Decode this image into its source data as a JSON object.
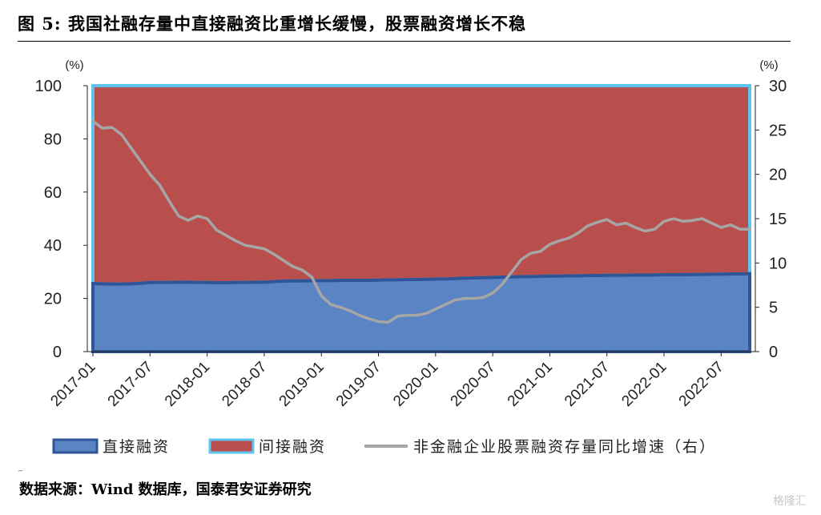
{
  "title": "图 5:  我国社融存量中直接融资比重增长缓慢，股票融资增长不稳",
  "source": "数据来源：Wind 数据库，国泰君安证券研究",
  "watermark": "格隆汇",
  "colors": {
    "direct_fill": "#5b84c4",
    "direct_edge": "#2e5597",
    "indirect_fill": "#b84f4d",
    "indirect_edge": "#5ec4ee",
    "growth_line": "#a6a6a6"
  },
  "chart_data": {
    "type": "area",
    "x": [
      "2017-01",
      "2017-02",
      "2017-03",
      "2017-04",
      "2017-05",
      "2017-06",
      "2017-07",
      "2017-08",
      "2017-09",
      "2017-10",
      "2017-11",
      "2017-12",
      "2018-01",
      "2018-02",
      "2018-03",
      "2018-04",
      "2018-05",
      "2018-06",
      "2018-07",
      "2018-08",
      "2018-09",
      "2018-10",
      "2018-11",
      "2018-12",
      "2019-01",
      "2019-02",
      "2019-03",
      "2019-04",
      "2019-05",
      "2019-06",
      "2019-07",
      "2019-08",
      "2019-09",
      "2019-10",
      "2019-11",
      "2019-12",
      "2020-01",
      "2020-02",
      "2020-03",
      "2020-04",
      "2020-05",
      "2020-06",
      "2020-07",
      "2020-08",
      "2020-09",
      "2020-10",
      "2020-11",
      "2020-12",
      "2021-01",
      "2021-02",
      "2021-03",
      "2021-04",
      "2021-05",
      "2021-06",
      "2021-07",
      "2021-08",
      "2021-09",
      "2021-10",
      "2021-11",
      "2021-12",
      "2022-01",
      "2022-02",
      "2022-03",
      "2022-04",
      "2022-05",
      "2022-06",
      "2022-07",
      "2022-08",
      "2022-09",
      "2022-10"
    ],
    "x_tick_labels": [
      "2017-01",
      "2017-07",
      "2018-01",
      "2018-07",
      "2019-01",
      "2019-07",
      "2020-01",
      "2020-07",
      "2021-01",
      "2021-07",
      "2022-01",
      "2022-07"
    ],
    "y_left": {
      "unit": "(%)",
      "range": [
        0,
        100
      ],
      "ticks": [
        "0",
        "20",
        "40",
        "60",
        "80",
        "100"
      ]
    },
    "y_right": {
      "unit": "(%)",
      "range": [
        0,
        30
      ],
      "ticks": [
        "0",
        "5",
        "10",
        "15",
        "20",
        "25",
        "30"
      ]
    },
    "series": [
      {
        "name": "直接融资",
        "kind": "area",
        "axis": "left",
        "values": [
          25.6,
          25.5,
          25.4,
          25.4,
          25.5,
          25.7,
          26.0,
          26.0,
          26.0,
          26.1,
          26.1,
          26.0,
          26.0,
          25.9,
          25.9,
          26.0,
          26.0,
          26.1,
          26.1,
          26.3,
          26.5,
          26.6,
          26.6,
          26.7,
          26.7,
          26.7,
          26.8,
          26.8,
          26.8,
          26.8,
          26.9,
          27.0,
          27.0,
          27.1,
          27.1,
          27.2,
          27.3,
          27.3,
          27.5,
          27.6,
          27.7,
          27.8,
          27.9,
          28.0,
          28.1,
          28.2,
          28.2,
          28.3,
          28.4,
          28.4,
          28.5,
          28.5,
          28.6,
          28.6,
          28.7,
          28.7,
          28.7,
          28.8,
          28.8,
          28.8,
          28.9,
          28.9,
          28.9,
          29.0,
          29.0,
          29.1,
          29.1,
          29.2,
          29.2,
          29.3
        ]
      },
      {
        "name": "间接融资",
        "kind": "area",
        "axis": "left",
        "values": [
          74.4,
          74.5,
          74.6,
          74.6,
          74.5,
          74.3,
          74.0,
          74.0,
          74.0,
          73.9,
          73.9,
          74.0,
          74.0,
          74.1,
          74.1,
          74.0,
          74.0,
          73.9,
          73.9,
          73.7,
          73.5,
          73.4,
          73.4,
          73.3,
          73.3,
          73.3,
          73.2,
          73.2,
          73.2,
          73.2,
          73.1,
          73.0,
          73.0,
          72.9,
          72.9,
          72.8,
          72.7,
          72.7,
          72.5,
          72.4,
          72.3,
          72.2,
          72.1,
          72.0,
          71.9,
          71.8,
          71.8,
          71.7,
          71.6,
          71.6,
          71.5,
          71.5,
          71.4,
          71.4,
          71.3,
          71.3,
          71.3,
          71.2,
          71.2,
          71.2,
          71.1,
          71.1,
          71.1,
          71.0,
          71.0,
          70.9,
          70.9,
          70.8,
          70.8,
          70.7
        ]
      },
      {
        "name": "非金融企业股票融资存量同比增速（右）",
        "kind": "line",
        "axis": "right",
        "values": [
          26.0,
          25.2,
          25.3,
          24.5,
          23.0,
          21.5,
          20.0,
          18.8,
          17.0,
          15.3,
          14.8,
          15.3,
          15.0,
          13.7,
          13.1,
          12.5,
          12.0,
          11.8,
          11.6,
          11.0,
          10.3,
          9.6,
          9.2,
          8.4,
          6.3,
          5.3,
          5.0,
          4.6,
          4.1,
          3.7,
          3.4,
          3.3,
          4.0,
          4.1,
          4.1,
          4.3,
          4.8,
          5.3,
          5.8,
          6.0,
          6.0,
          6.1,
          6.6,
          7.6,
          9.0,
          10.4,
          11.1,
          11.3,
          12.1,
          12.5,
          12.8,
          13.4,
          14.2,
          14.6,
          14.9,
          14.3,
          14.5,
          14.0,
          13.6,
          13.8,
          14.7,
          15.0,
          14.7,
          14.8,
          15.0,
          14.5,
          14.0,
          14.3,
          13.8,
          13.8
        ]
      }
    ],
    "legend": {
      "placement": "bottom"
    }
  }
}
